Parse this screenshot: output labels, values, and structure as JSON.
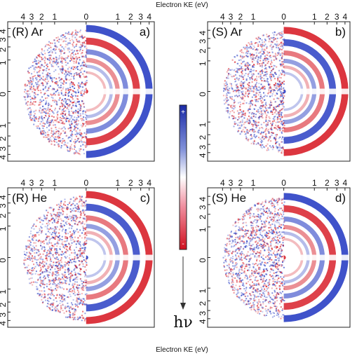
{
  "axis_title_top": "Electron KE (eV)",
  "axis_title_bottom": "Electron KE (eV)",
  "top_tick_labels": [
    "4",
    "3",
    "2",
    "1",
    "0",
    "1",
    "2",
    "3",
    "4"
  ],
  "side_tick_labels": [
    "4",
    "3",
    "2",
    "1",
    "0",
    "1",
    "2",
    "3",
    "4"
  ],
  "panels": [
    {
      "id": "a",
      "sample": "(R) Ar",
      "letter": "a)",
      "outer_band": "blue"
    },
    {
      "id": "b",
      "sample": "(S) Ar",
      "letter": "b)",
      "outer_band": "red"
    },
    {
      "id": "c",
      "sample": "(R) He",
      "letter": "c)",
      "outer_band": "red"
    },
    {
      "id": "d",
      "sample": "(S) He",
      "letter": "d)",
      "outer_band": "blue"
    }
  ],
  "colorbar": {
    "plus": "+",
    "minus": "-",
    "top_color": "#2233bb",
    "mid_color": "#ffffff",
    "bottom_color": "#dd1122"
  },
  "photon_label": "hν",
  "colors": {
    "blue": "#2a3fc4",
    "red": "#d8202a"
  }
}
